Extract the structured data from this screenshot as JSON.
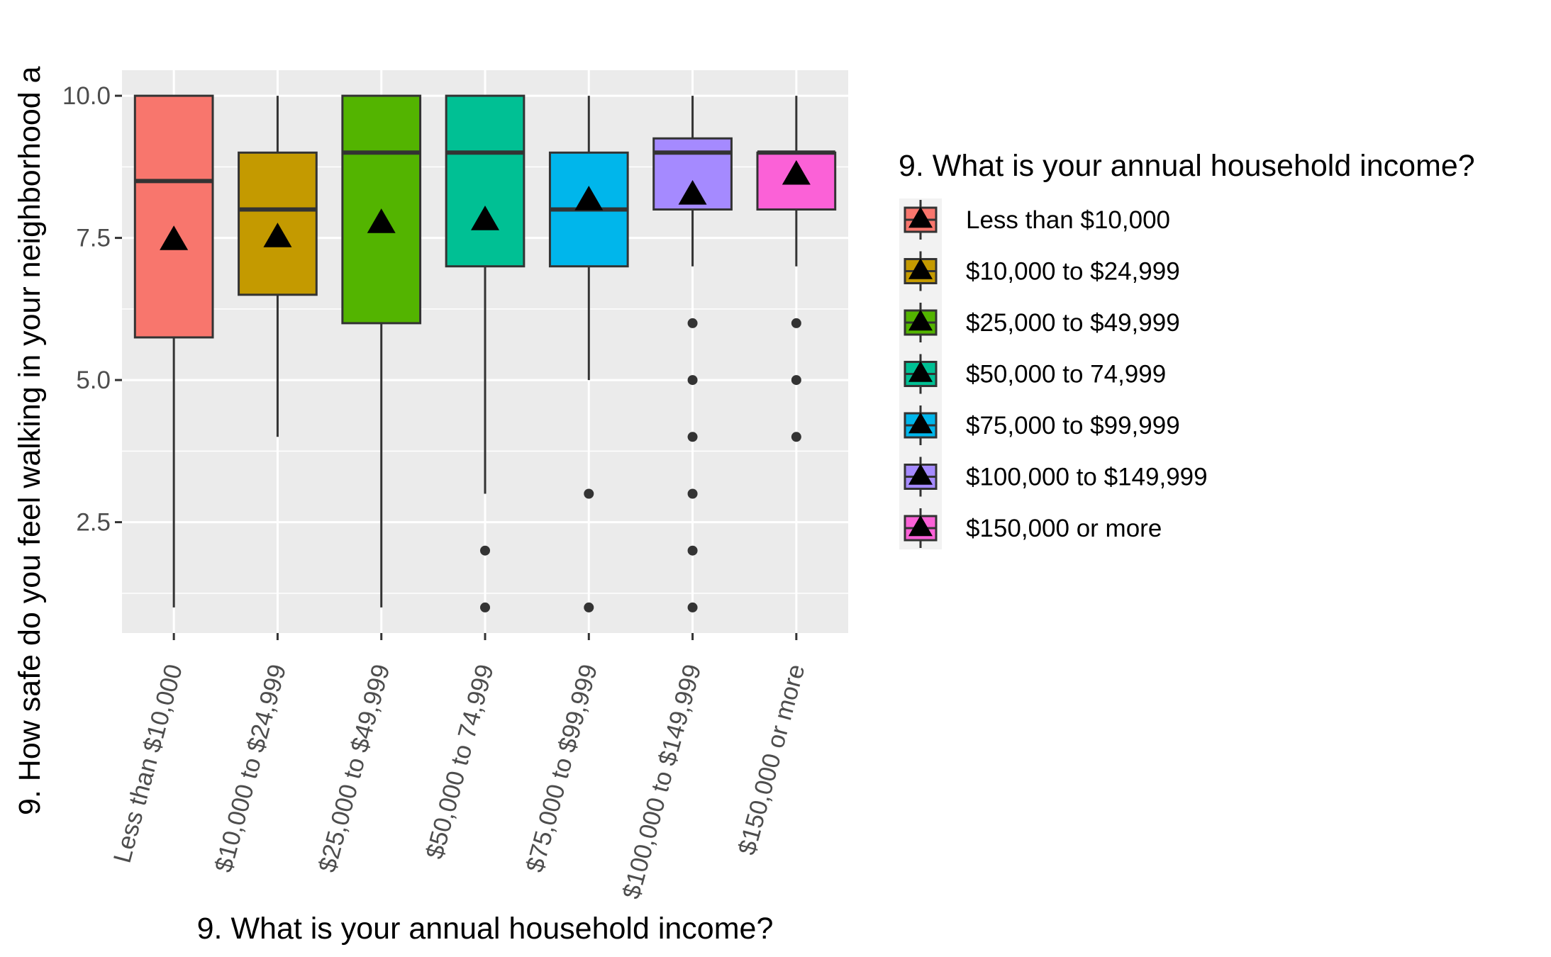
{
  "chart_data": {
    "type": "box",
    "xlabel": "9. What is your annual household income?",
    "ylabel": "9. How safe do you feel walking in your neighborhood a",
    "ylim": [
      0.55,
      10.45
    ],
    "yticks": [
      2.5,
      5.0,
      7.5,
      10.0
    ],
    "ytick_labels": [
      "2.5",
      "5.0",
      "7.5",
      "10.0"
    ],
    "grid": true,
    "legend_position": "right",
    "legend": {
      "title": "9. What is your annual household income?",
      "labels": [
        "Less than $10,000",
        "$10,000 to $24,999",
        "$25,000 to $49,999",
        "$50,000 to 74,999",
        "$75,000 to $99,999",
        "$100,000 to $149,999",
        "$150,000 or more"
      ]
    },
    "categories": [
      "Less than $10,000",
      "$10,000 to $24,999",
      "$25,000 to $49,999",
      "$50,000 to 74,999",
      "$75,000 to $99,999",
      "$100,000 to $149,999",
      "$150,000 or more"
    ],
    "colors": [
      "#F8766D",
      "#C49A00",
      "#53B400",
      "#00C094",
      "#00B6EB",
      "#A58AFF",
      "#FB61D7"
    ],
    "boxes": [
      {
        "q1": 5.75,
        "median": 8.5,
        "q3": 10.0,
        "whisker_low": 1.0,
        "whisker_high": 10.0,
        "mean": 7.45,
        "outliers": []
      },
      {
        "q1": 6.5,
        "median": 8.0,
        "q3": 9.0,
        "whisker_low": 4.0,
        "whisker_high": 10.0,
        "mean": 7.5,
        "outliers": []
      },
      {
        "q1": 6.0,
        "median": 9.0,
        "q3": 10.0,
        "whisker_low": 1.0,
        "whisker_high": 10.0,
        "mean": 7.75,
        "outliers": []
      },
      {
        "q1": 7.0,
        "median": 9.0,
        "q3": 10.0,
        "whisker_low": 3.0,
        "whisker_high": 10.0,
        "mean": 7.8,
        "outliers": [
          2.0,
          1.0
        ]
      },
      {
        "q1": 7.0,
        "median": 8.0,
        "q3": 9.0,
        "whisker_low": 5.0,
        "whisker_high": 10.0,
        "mean": 8.15,
        "outliers": [
          3.0,
          1.0
        ]
      },
      {
        "q1": 8.0,
        "median": 9.0,
        "q3": 9.25,
        "whisker_low": 7.0,
        "whisker_high": 10.0,
        "mean": 8.25,
        "outliers": [
          6.0,
          5.0,
          4.0,
          3.0,
          2.0,
          1.0
        ]
      },
      {
        "q1": 8.0,
        "median": 9.0,
        "q3": 9.0,
        "whisker_low": 7.0,
        "whisker_high": 10.0,
        "mean": 8.6,
        "outliers": [
          6.0,
          5.0,
          4.0
        ]
      }
    ]
  }
}
